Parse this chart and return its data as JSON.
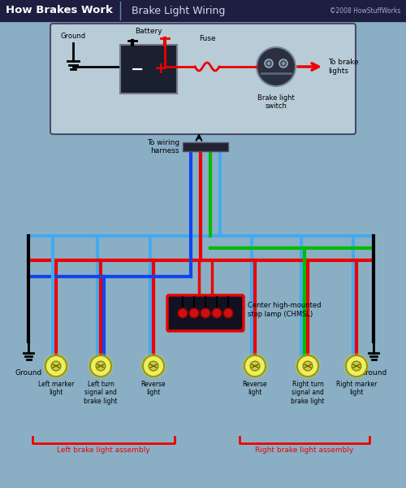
{
  "title_left": "How Brakes Work",
  "title_right": "  Brake Light Wiring",
  "copyright": "©2008 HowStuffWorks",
  "bg_color": "#8aafc5",
  "header_bg": "#1e1e40",
  "diagram_bg": "#b8ccd8",
  "diagram_border": "#4a4a6a",
  "wire_red": "#ee0000",
  "wire_blue": "#1144ee",
  "wire_green": "#00bb00",
  "wire_black": "#111111",
  "wire_lblue": "#44aaee",
  "bulb_color": "#eeee66",
  "bulb_edge": "#aaaa00",
  "ground_color": "#111111",
  "bracket_color": "#ee0000",
  "assembly_left": "Left brake light assembly",
  "assembly_right": "Right brake light assembly",
  "chmsl_label": "Center high-mounted\nstop lamp (CHMSL)",
  "harness_label": "To wiring\nharness",
  "ground_label": "Ground",
  "battery_label": "Battery",
  "fuse_label": "Fuse",
  "brake_switch_label": "Brake light\nswitch",
  "to_brake_label": "To brake\nlights",
  "left_labels": [
    "Left marker\nlight",
    "Left turn\nsignal and\nbrake light",
    "Reverse\nlight"
  ],
  "right_labels": [
    "Reverse\nlight",
    "Right turn\nsignal and\nbrake light",
    "Right marker\nlight"
  ]
}
